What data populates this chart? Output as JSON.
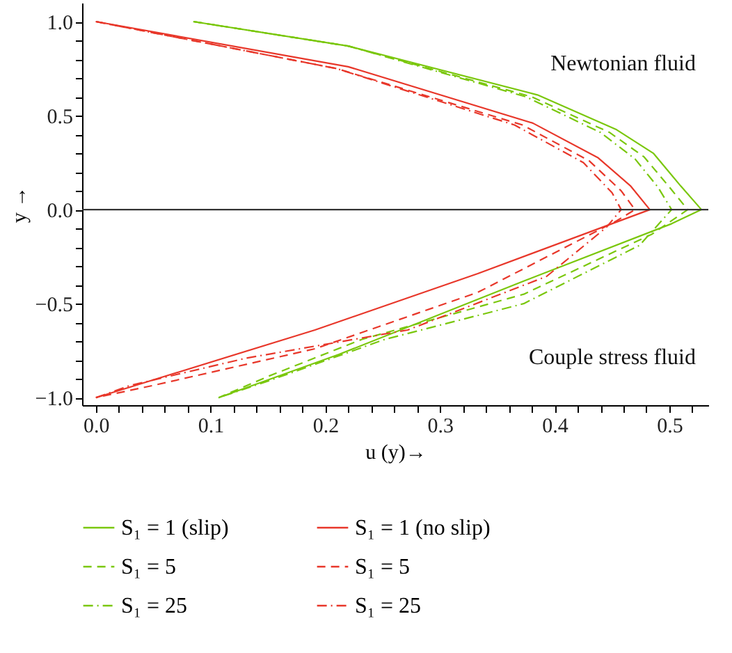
{
  "chart_data": {
    "type": "line",
    "xlabel": "u (y)→",
    "ylabel": "y →",
    "xlim": [
      -0.012,
      0.534
    ],
    "ylim": [
      -1.04,
      1.1
    ],
    "xticks": [
      {
        "value": 0.0,
        "label": "0.0"
      },
      {
        "value": 0.02,
        "label": null
      },
      {
        "value": 0.04,
        "label": null
      },
      {
        "value": 0.06,
        "label": null
      },
      {
        "value": 0.08,
        "label": null
      },
      {
        "value": 0.1,
        "label": "0.1"
      },
      {
        "value": 0.12,
        "label": null
      },
      {
        "value": 0.14,
        "label": null
      },
      {
        "value": 0.16,
        "label": null
      },
      {
        "value": 0.18,
        "label": null
      },
      {
        "value": 0.2,
        "label": "0.2"
      },
      {
        "value": 0.22,
        "label": null
      },
      {
        "value": 0.24,
        "label": null
      },
      {
        "value": 0.26,
        "label": null
      },
      {
        "value": 0.28,
        "label": null
      },
      {
        "value": 0.3,
        "label": "0.3"
      },
      {
        "value": 0.32,
        "label": null
      },
      {
        "value": 0.34,
        "label": null
      },
      {
        "value": 0.36,
        "label": null
      },
      {
        "value": 0.38,
        "label": null
      },
      {
        "value": 0.4,
        "label": "0.4"
      },
      {
        "value": 0.42,
        "label": null
      },
      {
        "value": 0.44,
        "label": null
      },
      {
        "value": 0.46,
        "label": null
      },
      {
        "value": 0.48,
        "label": null
      },
      {
        "value": 0.5,
        "label": "0.5"
      },
      {
        "value": 0.52,
        "label": null
      }
    ],
    "yticks": [
      {
        "value": -1.0,
        "label": "−1.0"
      },
      {
        "value": -0.9,
        "label": null
      },
      {
        "value": -0.8,
        "label": null
      },
      {
        "value": -0.7,
        "label": null
      },
      {
        "value": -0.6,
        "label": null
      },
      {
        "value": -0.5,
        "label": "−0.5"
      },
      {
        "value": -0.4,
        "label": null
      },
      {
        "value": -0.3,
        "label": null
      },
      {
        "value": -0.2,
        "label": null
      },
      {
        "value": -0.1,
        "label": null
      },
      {
        "value": 0.0,
        "label": "0.0"
      },
      {
        "value": 0.1,
        "label": null
      },
      {
        "value": 0.2,
        "label": null
      },
      {
        "value": 0.3,
        "label": null
      },
      {
        "value": 0.4,
        "label": null
      },
      {
        "value": 0.5,
        "label": "0.5"
      },
      {
        "value": 0.6,
        "label": null
      },
      {
        "value": 0.7,
        "label": null
      },
      {
        "value": 0.8,
        "label": null
      },
      {
        "value": 0.9,
        "label": null
      },
      {
        "value": 1.0,
        "label": "1.0"
      }
    ],
    "grid": false,
    "legend": "bottom",
    "marker": "none",
    "ref_lines": [
      {
        "axis": "y",
        "value": 0,
        "color": "#333333"
      }
    ],
    "annotations": [
      "Newtonian fluid",
      "Couple stress fluid"
    ],
    "series": [
      {
        "name": "S₁ = 1 (slip)",
        "color": "#7ac70c",
        "line_style": "solid",
        "x": [
          0.085,
          0.22,
          0.385,
          0.454,
          0.486,
          0.51,
          0.528,
          0.502,
          0.373,
          0.212,
          0.107
        ],
        "values": [
          1.0,
          0.87,
          0.61,
          0.425,
          0.3,
          0.125,
          0.0,
          -0.075,
          -0.38,
          -0.77,
          -1.0
        ]
      },
      {
        "name": "S₁ = 1 (no slip)",
        "color": "#e8372a",
        "line_style": "solid",
        "x": [
          0.0,
          0.22,
          0.381,
          0.438,
          0.466,
          0.483,
          0.333,
          0.191,
          0.0
        ],
        "values": [
          1.0,
          0.76,
          0.46,
          0.275,
          0.127,
          0.0,
          -0.34,
          -0.64,
          -1.0
        ]
      },
      {
        "name": "S₁ = 5",
        "color": "#7ac70c",
        "line_style": "dashed",
        "x": [
          0.085,
          0.22,
          0.38,
          0.448,
          0.478,
          0.5,
          0.516,
          0.485,
          0.373,
          0.232,
          0.151,
          0.107
        ],
        "values": [
          1.0,
          0.87,
          0.6,
          0.41,
          0.28,
          0.12,
          0.0,
          -0.13,
          -0.45,
          -0.69,
          -0.885,
          -1.0
        ]
      },
      {
        "name": "S₁ = 5",
        "color": "#e8372a",
        "line_style": "dashed",
        "x": [
          0.0,
          0.21,
          0.372,
          0.43,
          0.458,
          0.47,
          0.454,
          0.333,
          0.191,
          0.05,
          0.0
        ],
        "values": [
          1.0,
          0.75,
          0.45,
          0.26,
          0.1,
          0.0,
          -0.06,
          -0.44,
          -0.74,
          -0.935,
          -1.0
        ]
      },
      {
        "name": "S₁ = 25",
        "color": "#7ac70c",
        "line_style": "dashdot",
        "x": [
          0.085,
          0.22,
          0.375,
          0.44,
          0.47,
          0.49,
          0.502,
          0.474,
          0.373,
          0.252,
          0.151,
          0.107
        ],
        "values": [
          1.0,
          0.87,
          0.6,
          0.41,
          0.27,
          0.12,
          0.0,
          -0.19,
          -0.5,
          -0.69,
          -0.91,
          -1.0
        ]
      },
      {
        "name": "S₁ = 25",
        "color": "#e8372a",
        "line_style": "dashdot",
        "x": [
          0.0,
          0.21,
          0.365,
          0.425,
          0.45,
          0.458,
          0.445,
          0.393,
          0.272,
          0.131,
          0.03,
          0.0
        ],
        "values": [
          1.0,
          0.75,
          0.45,
          0.25,
          0.09,
          0.0,
          -0.095,
          -0.355,
          -0.64,
          -0.79,
          -0.935,
          -1.0
        ]
      }
    ]
  }
}
